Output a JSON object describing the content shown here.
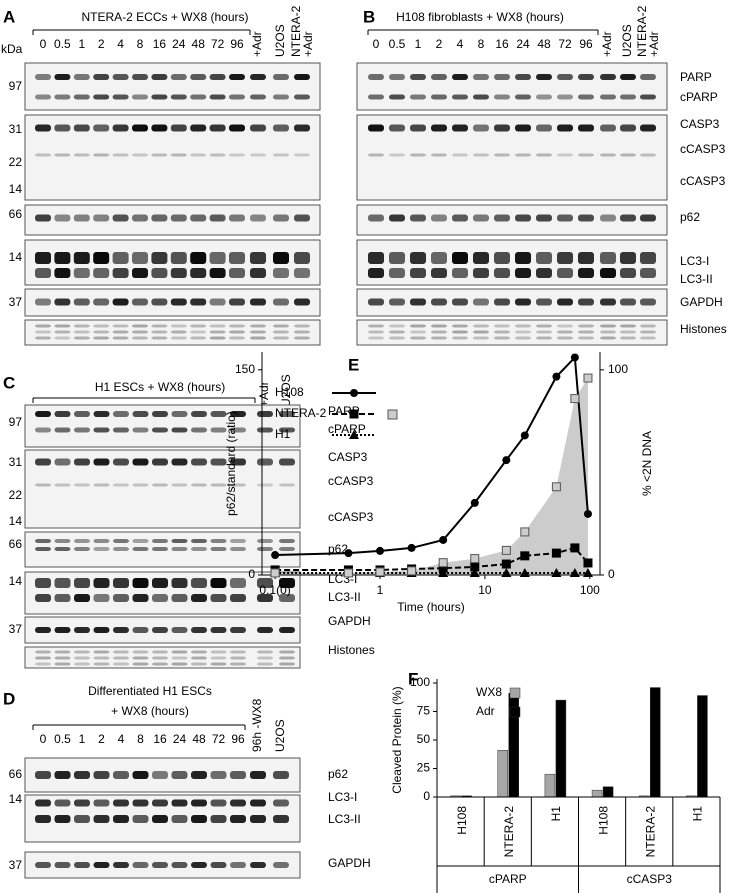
{
  "panels": [
    {
      "letter": "A",
      "title": "NTERA-2 ECCs + WX8 (hours)",
      "unit": "kDa",
      "lanes": [
        "0",
        "0.5",
        "1",
        "2",
        "4",
        "8",
        "16",
        "24",
        "48",
        "72",
        "96",
        "+Adr",
        "U2OS",
        [
          "NTERA-2",
          "+Adr"
        ]
      ],
      "markers": [
        "97",
        "31",
        "22",
        "14",
        "66",
        "14",
        "37"
      ]
    },
    {
      "letter": "B",
      "title": "H108 fibroblasts + WX8 (hours)",
      "lanes": [
        "0",
        "0.5",
        "1",
        "2",
        "4",
        "8",
        "16",
        "24",
        "48",
        "72",
        "96",
        "+Adr",
        "U2OS",
        [
          "NTERA-2",
          "+Adr"
        ]
      ],
      "bands": [
        "PARP",
        "cPARP",
        "CASP3",
        "cCASP3",
        "cCASP3",
        "p62",
        "LC3-I",
        "LC3-II",
        "GAPDH",
        "Histones"
      ]
    },
    {
      "letter": "C",
      "title": "H1 ESCs + WX8 (hours)",
      "lanes": [
        "+Adr",
        "U2OS"
      ],
      "markers": [
        "97",
        "31",
        "22",
        "14",
        "66",
        "14",
        "37"
      ],
      "bands": [
        "PARP",
        "cPARP",
        "CASP3",
        "cCASP3",
        "cCASP3",
        "p62",
        "LC3-I",
        "LC3-II",
        "GAPDH",
        "Histones"
      ]
    },
    {
      "letter": "D",
      "title": [
        "Differentiated H1 ESCs",
        "+ WX8 (hours)"
      ],
      "lanes": [
        "0",
        "0.5",
        "1",
        "2",
        "4",
        "8",
        "16",
        "24",
        "48",
        "72",
        "96",
        "96h -WX8",
        "U2OS"
      ],
      "markers": [
        "66",
        "14",
        "37"
      ],
      "bands": [
        "p62",
        "LC3-I",
        "LC3-II",
        "GAPDH"
      ]
    }
  ],
  "chart_data": [
    {
      "type": "line",
      "letter": "E",
      "xlabel": "Time (hours)",
      "ylabel": "p62/standard (ratio)",
      "y2label": "% <2N DNA",
      "log_x": true,
      "x": [
        0.1,
        0.5,
        1,
        2,
        4,
        8,
        16,
        24,
        48,
        72,
        96
      ],
      "xlim": [
        0.075,
        125
      ],
      "xticks": [
        {
          "value": 0.1,
          "label": "0.1(0)"
        },
        1,
        10,
        100
      ],
      "ylim": [
        0,
        163
      ],
      "yticks": [
        0,
        150
      ],
      "y2lim": [
        0,
        108.7
      ],
      "y2ticks": [
        0,
        100
      ],
      "series": [
        {
          "name": "H108",
          "color": "#000000",
          "dash": "solid",
          "marker": "circle",
          "values": [
            14.6,
            16,
            17.6,
            19.8,
            25.6,
            52.7,
            84,
            102,
            145,
            159,
            44.6
          ]
        },
        {
          "name": "NTERA-2",
          "color": "#000000",
          "dash": "dashed",
          "marker": "square",
          "values": [
            3.7,
            3.7,
            3.7,
            4.4,
            5,
            5.9,
            8,
            14,
            16,
            19.8,
            8.8
          ]
        },
        {
          "name": "H1",
          "color": "#000000",
          "dash": "dotted",
          "marker": "triangle",
          "values": [
            1.5,
            1.5,
            1.5,
            1.5,
            1.5,
            1.5,
            1.5,
            1.5,
            1.5,
            1.5,
            1.5
          ]
        },
        {
          "color": "#cccccc",
          "axis": "y2",
          "marker": "square",
          "values": [
            1,
            1,
            1.5,
            2,
            6,
            8,
            12,
            21,
            43,
            86,
            96
          ]
        }
      ]
    },
    {
      "type": "bar",
      "letter": "F",
      "ylabel": "Cleaved Protein (%)",
      "categories": [
        "H108",
        "NTERA-2",
        "H1",
        "H108",
        "NTERA-2",
        "H1"
      ],
      "groups": [
        "cPARP",
        "cCASP3"
      ],
      "ylim": [
        0,
        100
      ],
      "yticks": [
        0,
        25,
        50,
        75,
        100
      ],
      "series": [
        {
          "name": "WX8",
          "color": "#a6a6a6",
          "values": [
            1,
            41,
            20,
            6,
            1,
            1
          ]
        },
        {
          "name": "Adr",
          "color": "#000000",
          "values": [
            1,
            91,
            85,
            9,
            96,
            89
          ]
        }
      ]
    }
  ]
}
